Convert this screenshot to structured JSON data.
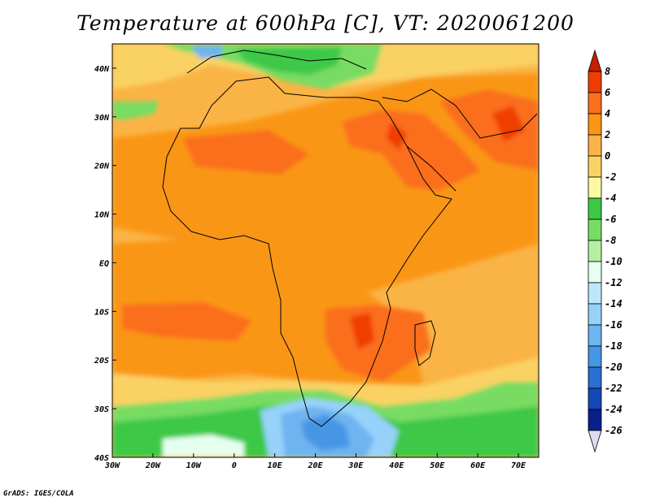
{
  "title": "Temperature at 600hPa [C], VT: 2020061200",
  "footer": "GrADS: IGES/COLA",
  "map": {
    "projection": "lat-lon",
    "lon_range": [
      -30,
      75
    ],
    "lat_range": [
      -40,
      45
    ],
    "x_ticks": [
      {
        "lon": -30,
        "label": "30W"
      },
      {
        "lon": -20,
        "label": "20W"
      },
      {
        "lon": -10,
        "label": "10W"
      },
      {
        "lon": 0,
        "label": "0"
      },
      {
        "lon": 10,
        "label": "10E"
      },
      {
        "lon": 20,
        "label": "20E"
      },
      {
        "lon": 30,
        "label": "30E"
      },
      {
        "lon": 40,
        "label": "40E"
      },
      {
        "lon": 50,
        "label": "50E"
      },
      {
        "lon": 60,
        "label": "60E"
      },
      {
        "lon": 70,
        "label": "70E"
      }
    ],
    "y_ticks": [
      {
        "lat": 40,
        "label": "40N"
      },
      {
        "lat": 30,
        "label": "30N"
      },
      {
        "lat": 20,
        "label": "20N"
      },
      {
        "lat": 10,
        "label": "10N"
      },
      {
        "lat": 0,
        "label": "EQ"
      },
      {
        "lat": -10,
        "label": "10S"
      },
      {
        "lat": -20,
        "label": "20S"
      },
      {
        "lat": -30,
        "label": "30S"
      },
      {
        "lat": -40,
        "label": "40S"
      }
    ]
  },
  "colorbar": {
    "labels": [
      "8",
      "6",
      "4",
      "2",
      "0",
      "-2",
      "-4",
      "-6",
      "-8",
      "-10",
      "-12",
      "-14",
      "-16",
      "-18",
      "-20",
      "-22",
      "-24",
      "-26"
    ],
    "colors": [
      "#c81e00",
      "#f03c00",
      "#fa6e1e",
      "#fa9614",
      "#fab446",
      "#fad264",
      "#fafaa0",
      "#3cc846",
      "#78dc64",
      "#b4f0a0",
      "#e6fff0",
      "#bee6fa",
      "#96d2fa",
      "#6eb4f0",
      "#4696e6",
      "#2870d2",
      "#1448b4",
      "#0a1e8c",
      "#dcdcf0"
    ]
  }
}
